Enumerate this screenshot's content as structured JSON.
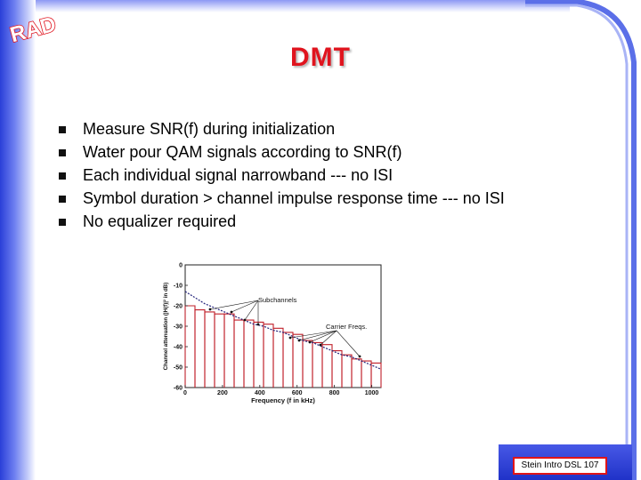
{
  "slide": {
    "logo_text": "RAD",
    "title": "DMT",
    "bullets": [
      "Measure SNR(f) during initialization",
      "Water pour QAM signals according to SNR(f)",
      "Each individual signal narrowband --- no ISI",
      "Symbol duration > channel impulse response time --- no ISI",
      "No equalizer required"
    ],
    "footer": "Stein Intro DSL 107"
  },
  "figure": {
    "ylabel": "Channel attenuation (|H(f)|² in dB)",
    "xlabel": "Frequency (f in kHz)",
    "annotations": [
      "Subchannels",
      "Carrier Freqs."
    ],
    "x_ticks": [
      "0",
      "200",
      "400",
      "600",
      "800",
      "1000"
    ],
    "y_ticks": [
      "0",
      "-10",
      "-20",
      "-30",
      "-40",
      "-50",
      "-60"
    ],
    "xlim": [
      0,
      1050
    ],
    "ylim": [
      -60,
      0
    ],
    "subchannel_levels_db": [
      -20,
      -22,
      -23,
      -24,
      -24,
      -27,
      -27,
      -28,
      -29,
      -31,
      -33,
      -34,
      -37,
      -38,
      -39,
      -42,
      -44,
      -46,
      -47,
      -48
    ],
    "curve_db": [
      -13,
      -16,
      -19,
      -21,
      -23,
      -25,
      -27,
      -29,
      -30,
      -32,
      -33,
      -35,
      -37,
      -38,
      -40,
      -42,
      -44,
      -45,
      -47,
      -49,
      -51
    ],
    "colors": {
      "bars": "#c0202a",
      "curve": "#22227a",
      "title": "#e0141e",
      "accent_blue": "#2a3fd8"
    }
  }
}
